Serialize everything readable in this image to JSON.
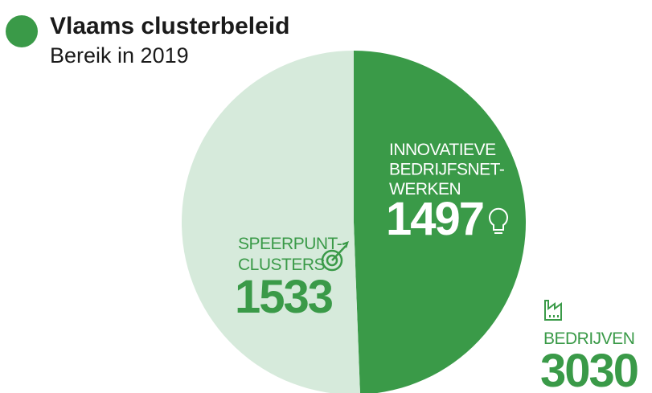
{
  "chart_data": {
    "type": "pie",
    "title": "Vlaams clusterbeleid",
    "subtitle": "Bereik in 2019",
    "categories": [
      [
        "INNOVATIEVE",
        "BEDRIJFSNET-",
        "WERKEN"
      ],
      [
        "SPEERPUNT-",
        "CLUSTERS"
      ]
    ],
    "values": [
      1497,
      1533
    ],
    "colors": [
      "#3a9a48",
      "#d6eadb"
    ],
    "total": {
      "label": "BEDRIJVEN",
      "value": 3030
    }
  }
}
